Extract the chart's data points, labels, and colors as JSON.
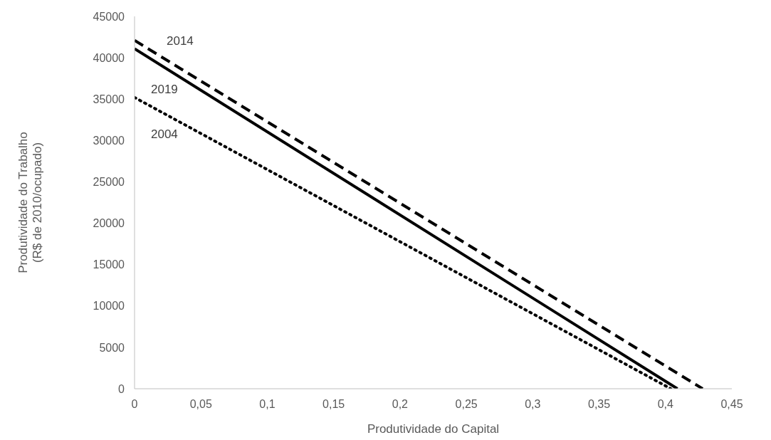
{
  "chart_data": {
    "type": "line",
    "xlabel": "Produtividade do Capital",
    "ylabel": "Produtividade do Trabalho\n(R$ de 2010/ocupado)",
    "series": [
      {
        "color": "#000000",
        "line_style": "dashed",
        "x": [
          0,
          0.428
        ],
        "values": [
          42100,
          0
        ]
      },
      {
        "color": "#000000",
        "line_style": "solid",
        "x": [
          0,
          0.409
        ],
        "values": [
          41100,
          0
        ]
      },
      {
        "color": "#000000",
        "line_style": "dotted",
        "x": [
          0,
          0.404
        ],
        "values": [
          35200,
          0
        ]
      }
    ],
    "xlim": [
      0,
      0.45
    ],
    "xticks": [
      0,
      {
        "value": 0.05,
        "label": "0,05"
      },
      {
        "value": 0.1,
        "label": "0,1"
      },
      {
        "value": 0.15,
        "label": "0,15"
      },
      {
        "value": 0.2,
        "label": "0,2"
      },
      {
        "value": 0.25,
        "label": "0,25"
      },
      {
        "value": 0.3,
        "label": "0,3"
      },
      {
        "value": 0.35,
        "label": "0,35"
      },
      {
        "value": 0.4,
        "label": "0,4"
      },
      {
        "value": 0.45,
        "label": "0,45"
      }
    ],
    "ylim": [
      0,
      45000
    ],
    "yticks": [
      0,
      5000,
      10000,
      15000,
      20000,
      25000,
      30000,
      35000,
      40000,
      45000
    ],
    "annotations": [
      "2014",
      "2019",
      "2004"
    ],
    "grid": false,
    "marker": "none"
  }
}
